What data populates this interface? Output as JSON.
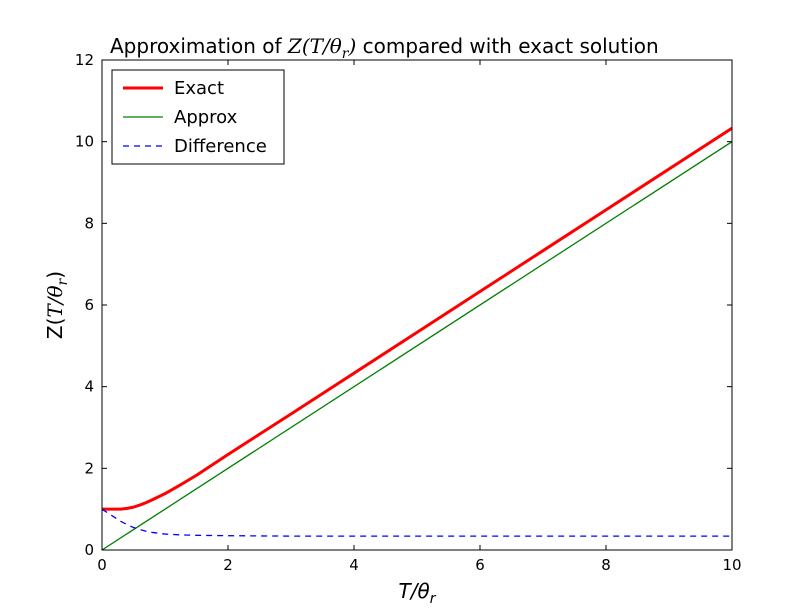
{
  "chart_data": {
    "type": "line",
    "title": "Approximation of Z(T/θr) compared with exact solution",
    "xlabel": "T/θr",
    "ylabel": "Z(T/θr)",
    "xlim": [
      0,
      10
    ],
    "ylim": [
      0,
      12
    ],
    "xticks": [
      "0",
      "2",
      "4",
      "6",
      "8",
      "10"
    ],
    "yticks": [
      "0",
      "2",
      "4",
      "6",
      "8",
      "10",
      "12"
    ],
    "grid": false,
    "legend_position": "top-left",
    "series": [
      {
        "name": "Exact",
        "color": "#ff0000",
        "style": "solid-thick",
        "x": [
          0,
          0.1,
          0.2,
          0.3,
          0.4,
          0.5,
          0.6,
          0.7,
          0.8,
          1.0,
          1.25,
          1.5,
          2,
          3,
          4,
          5,
          6,
          7,
          8,
          9,
          10
        ],
        "y": [
          1.0,
          1.0,
          1.0,
          1.0,
          1.02,
          1.05,
          1.1,
          1.16,
          1.23,
          1.38,
          1.6,
          1.83,
          2.34,
          3.33,
          4.33,
          5.33,
          6.33,
          7.33,
          8.33,
          9.33,
          10.33
        ]
      },
      {
        "name": "Approx",
        "color": "#008000",
        "style": "solid",
        "x": [
          0,
          10
        ],
        "y": [
          0,
          10
        ]
      },
      {
        "name": "Difference",
        "color": "#0000ff",
        "style": "dashed",
        "x": [
          0,
          0.1,
          0.2,
          0.3,
          0.4,
          0.5,
          0.6,
          0.7,
          0.8,
          1.0,
          1.25,
          1.5,
          2,
          3,
          4,
          5,
          6,
          7,
          8,
          9,
          10
        ],
        "y": [
          1.0,
          0.9,
          0.8,
          0.7,
          0.62,
          0.55,
          0.5,
          0.46,
          0.43,
          0.39,
          0.37,
          0.36,
          0.35,
          0.34,
          0.34,
          0.34,
          0.34,
          0.34,
          0.34,
          0.34,
          0.34
        ]
      }
    ]
  }
}
